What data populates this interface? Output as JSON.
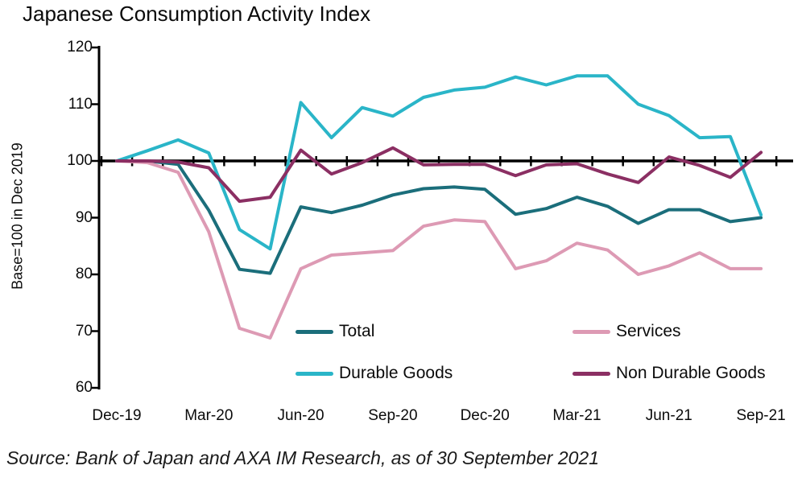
{
  "title": "Japanese Consumption Activity Index",
  "source": "Source: Bank of Japan and AXA IM Research, as of 30 September 2021",
  "y_axis": {
    "label": "Base=100 in Dec 2019",
    "ticks": [
      120,
      110,
      100,
      90,
      80,
      70,
      60
    ],
    "min": 60,
    "max": 120,
    "baseline": 100
  },
  "x_axis": {
    "labels": [
      "Dec-19",
      "Mar-20",
      "Jun-20",
      "Sep-20",
      "Dec-20",
      "Mar-21",
      "Jun-21",
      "Sep-21"
    ]
  },
  "chart_data": {
    "type": "line",
    "title": "Japanese Consumption Activity Index",
    "xlabel": "",
    "ylabel": "Base=100 in Dec 2019",
    "ylim": [
      60,
      120
    ],
    "baseline": 100,
    "grid": false,
    "legend_position": "inside-bottom",
    "categories": [
      "Dec-19",
      "Jan-20",
      "Feb-20",
      "Mar-20",
      "Apr-20",
      "May-20",
      "Jun-20",
      "Jul-20",
      "Aug-20",
      "Sep-20",
      "Oct-20",
      "Nov-20",
      "Dec-20",
      "Jan-21",
      "Feb-21",
      "Mar-21",
      "Apr-21",
      "May-21",
      "Jun-21",
      "Jul-21",
      "Aug-21",
      "Sep-21"
    ],
    "series": [
      {
        "name": "Total",
        "color": "#1b6e7b",
        "values": [
          100,
          100,
          99.4,
          91.3,
          80.9,
          80.2,
          91.9,
          90.9,
          92.2,
          94.0,
          95.1,
          95.4,
          95.0,
          90.6,
          91.6,
          93.6,
          92.0,
          89.0,
          91.4,
          91.4,
          89.3,
          90.0
        ]
      },
      {
        "name": "Services",
        "color": "#dd9ab4",
        "values": [
          100,
          99.7,
          98.0,
          87.5,
          70.5,
          68.8,
          81.0,
          83.4,
          83.8,
          84.2,
          88.5,
          89.6,
          89.3,
          81.0,
          82.4,
          85.5,
          84.3,
          80.0,
          81.5,
          83.8,
          81.0,
          81.0
        ]
      },
      {
        "name": "Durable Goods",
        "color": "#2ab5c8",
        "values": [
          100,
          101.8,
          103.7,
          101.4,
          87.9,
          84.5,
          110.3,
          104.1,
          109.4,
          107.9,
          111.2,
          112.5,
          113.0,
          114.8,
          113.4,
          115.0,
          115.0,
          110.0,
          108.0,
          104.1,
          104.3,
          90.5
        ]
      },
      {
        "name": "Non Durable Goods",
        "color": "#8b2f63",
        "values": [
          100,
          100,
          99.8,
          98.8,
          92.9,
          93.6,
          101.9,
          97.7,
          99.7,
          102.3,
          99.3,
          99.4,
          99.4,
          97.4,
          99.3,
          99.5,
          97.7,
          96.2,
          100.7,
          99.2,
          97.1,
          101.5
        ]
      }
    ]
  }
}
